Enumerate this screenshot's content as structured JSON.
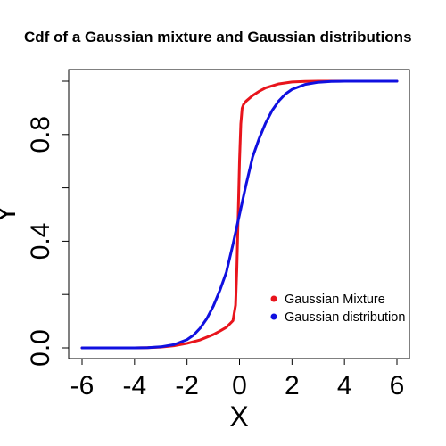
{
  "chart_data": {
    "type": "line",
    "title": "Cdf of a Gaussian mixture and Gaussian distributions",
    "xlabel": "X",
    "ylabel": "Y",
    "xlim": [
      -6,
      6
    ],
    "ylim": [
      0,
      1
    ],
    "x_ticks": [
      -6,
      -4,
      -2,
      0,
      2,
      4,
      6
    ],
    "x_tick_labels": [
      "-6",
      "-4",
      "-2",
      "0",
      "2",
      "4",
      "6"
    ],
    "y_ticks": [
      0.0,
      0.2,
      0.4,
      0.6,
      0.8,
      1.0
    ],
    "y_tick_labels": [
      "0.0",
      "",
      "0.4",
      "",
      "0.8",
      ""
    ],
    "grid": false,
    "legend_position": "bottom-right",
    "series": [
      {
        "name": "Gaussian Mixture",
        "color": "#e8141c",
        "x": [
          -6,
          -5,
          -4,
          -3.5,
          -3,
          -2.5,
          -2,
          -1.5,
          -1,
          -0.75,
          -0.5,
          -0.25,
          -0.15,
          -0.1,
          -0.05,
          0,
          0.05,
          0.1,
          0.15,
          0.25,
          0.5,
          0.75,
          1,
          1.5,
          2,
          2.5,
          3,
          4,
          5,
          6
        ],
        "y": [
          0,
          0,
          0,
          0.001,
          0.003,
          0.008,
          0.017,
          0.03,
          0.05,
          0.063,
          0.077,
          0.102,
          0.16,
          0.3,
          0.5,
          0.7,
          0.84,
          0.898,
          0.912,
          0.925,
          0.946,
          0.962,
          0.975,
          0.99,
          0.997,
          0.999,
          1,
          1,
          1,
          1
        ]
      },
      {
        "name": "Gaussian distribution",
        "color": "#1010e0",
        "x": [
          -6,
          -5,
          -4,
          -3.5,
          -3,
          -2.5,
          -2,
          -1.75,
          -1.5,
          -1.25,
          -1,
          -0.75,
          -0.5,
          -0.25,
          0,
          0.25,
          0.5,
          0.75,
          1,
          1.25,
          1.5,
          1.75,
          2,
          2.5,
          3,
          3.5,
          4,
          5,
          6
        ],
        "y": [
          0,
          0,
          0,
          0.001,
          0.004,
          0.012,
          0.031,
          0.048,
          0.074,
          0.109,
          0.156,
          0.215,
          0.284,
          0.388,
          0.5,
          0.612,
          0.716,
          0.785,
          0.844,
          0.891,
          0.926,
          0.952,
          0.969,
          0.988,
          0.996,
          0.999,
          1,
          1,
          1
        ]
      }
    ]
  }
}
